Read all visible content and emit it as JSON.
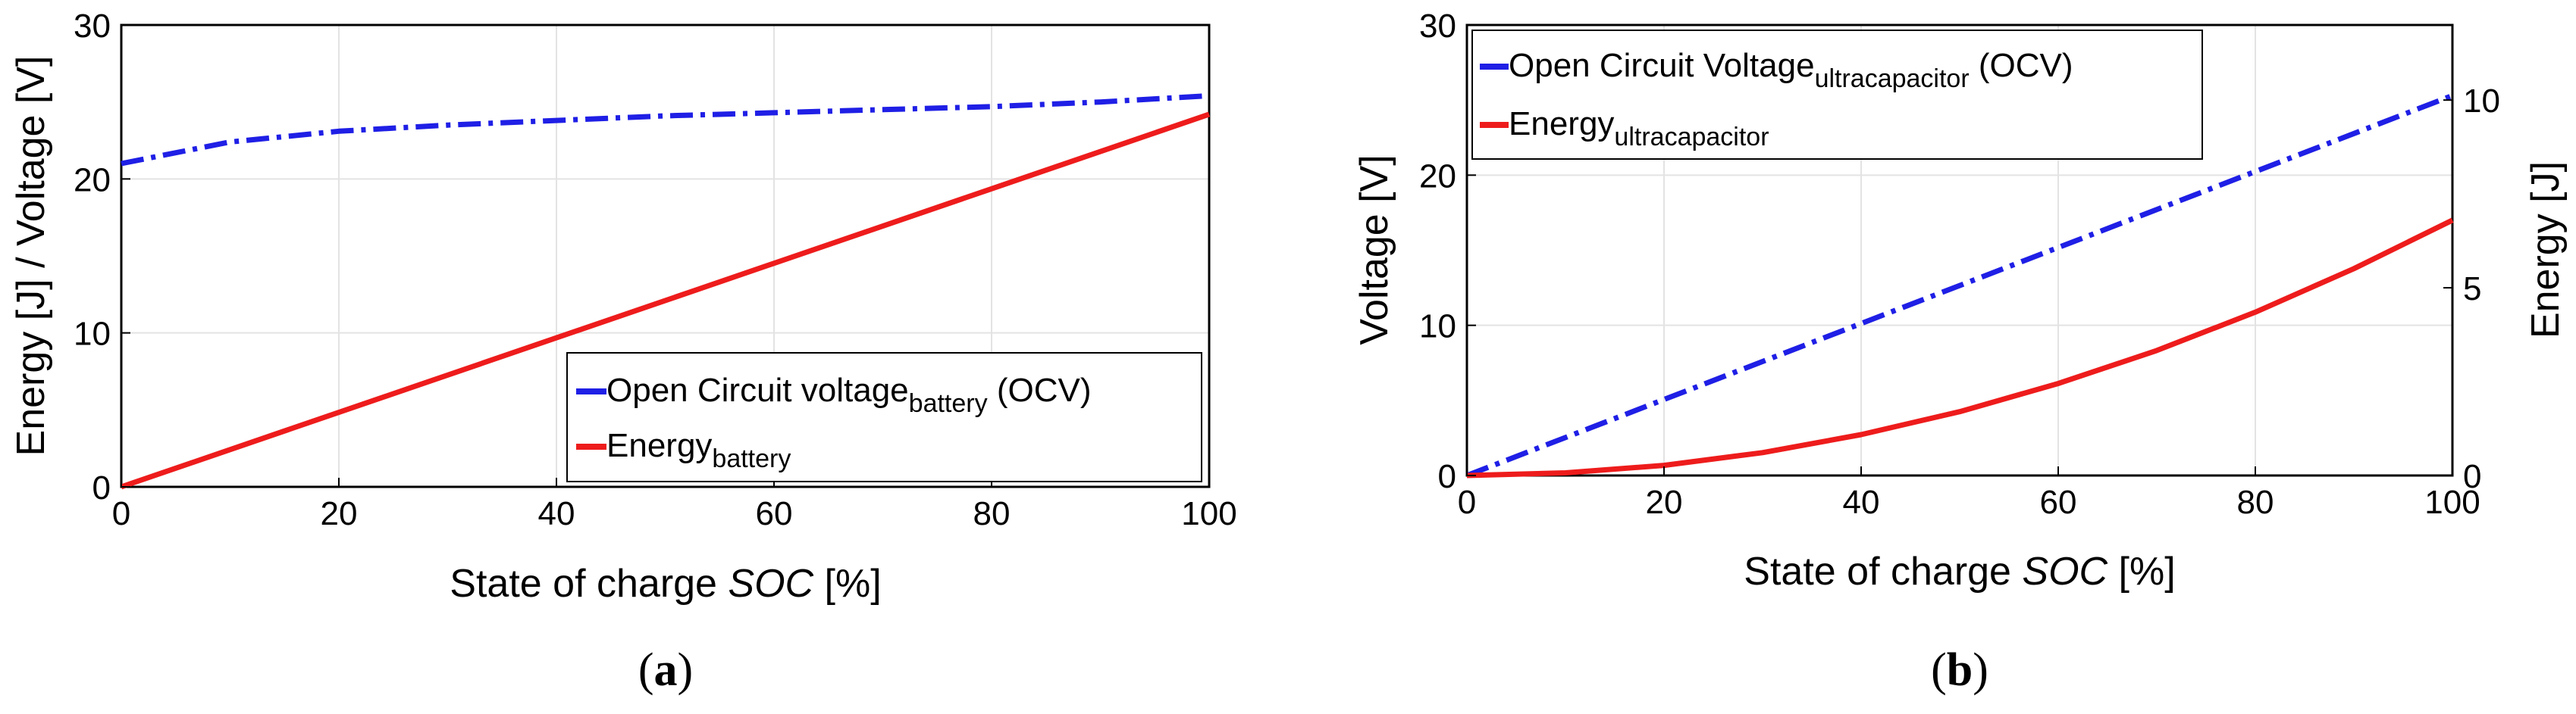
{
  "chart_data": [
    {
      "id": "a",
      "type": "line",
      "caption": "a",
      "xlabel_prefix": "State  of charge ",
      "xlabel_italic": "SOC",
      "xlabel_suffix": " [%]",
      "ylabel": "Energy [J] / Voltage [V]",
      "xlim": [
        0,
        100
      ],
      "ylim": [
        0,
        30
      ],
      "xticks": [
        0,
        20,
        40,
        60,
        80,
        100
      ],
      "yticks": [
        0,
        10,
        20,
        30
      ],
      "grid": true,
      "legend_position": "bottom-right",
      "series": [
        {
          "name": "Open Circuit voltage",
          "name_sub": "battery",
          "name_suffix": " (OCV)",
          "color": "#1f1fe6",
          "style": "dash-dot",
          "x": [
            0,
            10,
            20,
            30,
            40,
            50,
            60,
            70,
            80,
            90,
            100
          ],
          "y": [
            21.0,
            22.4,
            23.1,
            23.5,
            23.8,
            24.1,
            24.3,
            24.5,
            24.7,
            25.0,
            25.4
          ]
        },
        {
          "name": "Energy",
          "name_sub": "battery",
          "name_suffix": "",
          "color": "#ee1c1c",
          "style": "solid",
          "x": [
            0,
            100
          ],
          "y": [
            0,
            24.2
          ]
        }
      ]
    },
    {
      "id": "b",
      "type": "line",
      "caption": "b",
      "xlabel_prefix": "State  of charge ",
      "xlabel_italic": "SOC",
      "xlabel_suffix": " [%]",
      "ylabel": "Voltage [V]",
      "ylabel_right": "Energy [J]",
      "xlim": [
        0,
        100
      ],
      "ylim": [
        0,
        30
      ],
      "ylim_right": [
        0,
        12
      ],
      "xticks": [
        0,
        20,
        40,
        60,
        80,
        100
      ],
      "yticks": [
        0,
        10,
        20,
        30
      ],
      "yticks_right": [
        0,
        5,
        10
      ],
      "grid": true,
      "legend_position": "top-left",
      "series": [
        {
          "name": "Open Circuit Voltage",
          "name_sub": "ultracapacitor",
          "name_suffix": " (OCV)",
          "color": "#1f1fe6",
          "style": "dash-dot",
          "axis": "left",
          "x": [
            0,
            100
          ],
          "y": [
            0,
            25.3
          ]
        },
        {
          "name": "Energy",
          "name_sub": "ultracapacitor",
          "name_suffix": "",
          "color": "#ee1c1c",
          "style": "solid",
          "axis": "right",
          "x": [
            0,
            10,
            20,
            30,
            40,
            50,
            60,
            70,
            80,
            90,
            100
          ],
          "y": [
            0,
            0.07,
            0.27,
            0.61,
            1.09,
            1.7,
            2.45,
            3.33,
            4.35,
            5.51,
            6.8
          ]
        }
      ]
    }
  ]
}
